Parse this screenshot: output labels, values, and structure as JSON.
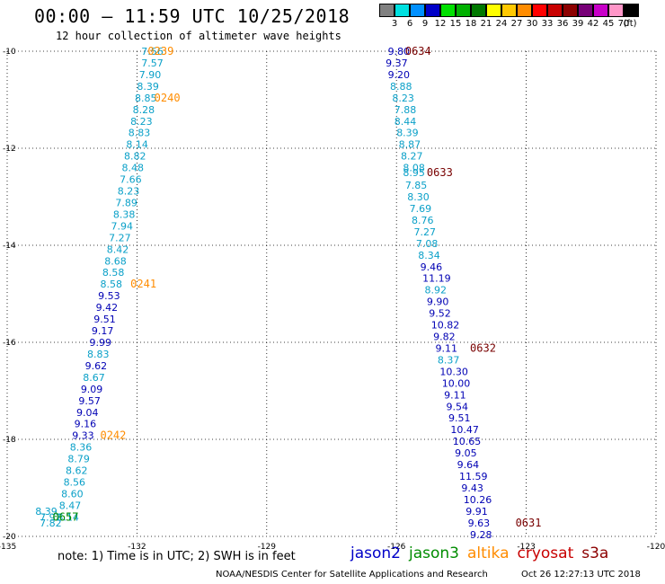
{
  "header": {
    "title": "00:00 – 11:59 UTC 10/25/2018",
    "subtitle": "12 hour collection of altimeter wave heights"
  },
  "color_scale": {
    "unit": "(ft)",
    "bins": [
      {
        "label": "3",
        "color": "#808080"
      },
      {
        "label": "6",
        "color": "#00e0e0"
      },
      {
        "label": "9",
        "color": "#0090ff"
      },
      {
        "label": "12",
        "color": "#0000c8"
      },
      {
        "label": "15",
        "color": "#00e000"
      },
      {
        "label": "18",
        "color": "#00b000"
      },
      {
        "label": "21",
        "color": "#007800"
      },
      {
        "label": "24",
        "color": "#ffff00"
      },
      {
        "label": "27",
        "color": "#ffc800"
      },
      {
        "label": "30",
        "color": "#ff8c00"
      },
      {
        "label": "33",
        "color": "#ff0000"
      },
      {
        "label": "36",
        "color": "#c80000"
      },
      {
        "label": "39",
        "color": "#8c0000"
      },
      {
        "label": "42",
        "color": "#780078"
      },
      {
        "label": "45",
        "color": "#c800c8"
      },
      {
        "label": "70",
        "color": "#ff96c8"
      },
      {
        "label": "",
        "color": "#000000"
      }
    ]
  },
  "note": "note: 1) Time is in UTC; 2) SWH is in feet",
  "satellites": [
    {
      "name": "jason2",
      "color": "#0000c8"
    },
    {
      "name": "jason3",
      "color": "#008c00"
    },
    {
      "name": "altika",
      "color": "#ff8c00"
    },
    {
      "name": "cryosat",
      "color": "#c80000"
    },
    {
      "name": "s3a",
      "color": "#8c0000"
    }
  ],
  "footer": {
    "left": "NOAA/NESDIS Center for Satellite Applications and Research",
    "right": "Oct 26 12:27:13 UTC 2018"
  },
  "chart_data": {
    "type": "scatter",
    "x_ticks": [
      "-135",
      "-132",
      "-129",
      "-126",
      "-123",
      "-120"
    ],
    "y_ticks": [
      "-10",
      "-12",
      "-14",
      "-16",
      "-18",
      "-20"
    ],
    "xlim": [
      -135,
      -120
    ],
    "ylim": [
      -20,
      -10
    ],
    "grid": "dotted",
    "colors": {
      "cyan": "#0aa0c8",
      "blue": "#0000b4",
      "orange": "#ff8c00",
      "darkred": "#780000",
      "green": "#008c00"
    },
    "series": [
      {
        "points": [
          {
            "lon": -131.9,
            "lat": -10.0,
            "swh": "7.56",
            "c": "cyan"
          },
          {
            "lon": -131.9,
            "lat": -10.24,
            "swh": "7.57",
            "c": "cyan"
          },
          {
            "lon": -131.95,
            "lat": -10.48,
            "swh": "7.90",
            "c": "cyan"
          },
          {
            "lon": -132.0,
            "lat": -10.72,
            "swh": "8.39",
            "c": "cyan"
          },
          {
            "lon": -132.05,
            "lat": -10.96,
            "swh": "8.85",
            "c": "cyan"
          },
          {
            "lon": -132.1,
            "lat": -11.2,
            "swh": "8.28",
            "c": "cyan"
          },
          {
            "lon": -132.15,
            "lat": -11.44,
            "swh": "8.23",
            "c": "cyan"
          },
          {
            "lon": -132.2,
            "lat": -11.68,
            "swh": "8.83",
            "c": "cyan"
          },
          {
            "lon": -132.25,
            "lat": -11.92,
            "swh": "8.14",
            "c": "cyan"
          },
          {
            "lon": -132.3,
            "lat": -12.16,
            "swh": "8.82",
            "c": "cyan"
          },
          {
            "lon": -132.35,
            "lat": -12.4,
            "swh": "8.48",
            "c": "cyan"
          },
          {
            "lon": -132.4,
            "lat": -12.64,
            "swh": "7.66",
            "c": "cyan"
          },
          {
            "lon": -132.45,
            "lat": -12.88,
            "swh": "8.23",
            "c": "cyan"
          },
          {
            "lon": -132.5,
            "lat": -13.12,
            "swh": "7.89",
            "c": "cyan"
          },
          {
            "lon": -132.55,
            "lat": -13.36,
            "swh": "8.38",
            "c": "cyan"
          },
          {
            "lon": -132.6,
            "lat": -13.6,
            "swh": "7.94",
            "c": "cyan"
          },
          {
            "lon": -132.65,
            "lat": -13.84,
            "swh": "7.27",
            "c": "cyan"
          },
          {
            "lon": -132.7,
            "lat": -14.08,
            "swh": "8.42",
            "c": "cyan"
          },
          {
            "lon": -132.75,
            "lat": -14.32,
            "swh": "8.68",
            "c": "cyan"
          },
          {
            "lon": -132.8,
            "lat": -14.56,
            "swh": "8.58",
            "c": "cyan"
          },
          {
            "lon": -132.85,
            "lat": -14.8,
            "swh": "8.58",
            "c": "cyan"
          },
          {
            "lon": -132.9,
            "lat": -15.04,
            "swh": "9.53",
            "c": "blue"
          },
          {
            "lon": -132.95,
            "lat": -15.28,
            "swh": "9.42",
            "c": "blue"
          },
          {
            "lon": -133.0,
            "lat": -15.52,
            "swh": "9.51",
            "c": "blue"
          },
          {
            "lon": -133.05,
            "lat": -15.76,
            "swh": "9.17",
            "c": "blue"
          },
          {
            "lon": -133.1,
            "lat": -16.0,
            "swh": "9.99",
            "c": "blue"
          },
          {
            "lon": -133.15,
            "lat": -16.24,
            "swh": "8.83",
            "c": "cyan"
          },
          {
            "lon": -133.2,
            "lat": -16.48,
            "swh": "9.62",
            "c": "blue"
          },
          {
            "lon": -133.25,
            "lat": -16.72,
            "swh": "8.67",
            "c": "cyan"
          },
          {
            "lon": -133.3,
            "lat": -16.96,
            "swh": "9.09",
            "c": "blue"
          },
          {
            "lon": -133.35,
            "lat": -17.2,
            "swh": "9.57",
            "c": "blue"
          },
          {
            "lon": -133.4,
            "lat": -17.44,
            "swh": "9.04",
            "c": "blue"
          },
          {
            "lon": -133.45,
            "lat": -17.68,
            "swh": "9.16",
            "c": "blue"
          },
          {
            "lon": -133.5,
            "lat": -17.92,
            "swh": "9.33",
            "c": "blue"
          },
          {
            "lon": -133.55,
            "lat": -18.16,
            "swh": "8.36",
            "c": "cyan"
          },
          {
            "lon": -133.6,
            "lat": -18.4,
            "swh": "8.79",
            "c": "cyan"
          },
          {
            "lon": -133.65,
            "lat": -18.64,
            "swh": "8.62",
            "c": "cyan"
          },
          {
            "lon": -133.7,
            "lat": -18.88,
            "swh": "8.56",
            "c": "cyan"
          },
          {
            "lon": -133.75,
            "lat": -19.12,
            "swh": "8.60",
            "c": "cyan"
          },
          {
            "lon": -133.8,
            "lat": -19.36,
            "swh": "8.47",
            "c": "cyan"
          },
          {
            "lon": -133.85,
            "lat": -19.6,
            "swh": "8.14",
            "c": "cyan"
          },
          {
            "lon": -134.35,
            "lat": -19.48,
            "swh": "8.39",
            "c": "cyan"
          },
          {
            "lon": -134.25,
            "lat": -19.6,
            "swh": "7.92",
            "c": "cyan"
          },
          {
            "lon": -134.25,
            "lat": -19.72,
            "swh": "7.82",
            "c": "cyan"
          },
          {
            "lon": -126.2,
            "lat": -10.0,
            "swh": "9.80",
            "c": "blue"
          },
          {
            "lon": -126.25,
            "lat": -10.24,
            "swh": "9.37",
            "c": "blue"
          },
          {
            "lon": -126.2,
            "lat": -10.48,
            "swh": "9.20",
            "c": "blue"
          },
          {
            "lon": -126.15,
            "lat": -10.72,
            "swh": "8.88",
            "c": "cyan"
          },
          {
            "lon": -126.1,
            "lat": -10.96,
            "swh": "8.23",
            "c": "cyan"
          },
          {
            "lon": -126.05,
            "lat": -11.2,
            "swh": "7.88",
            "c": "cyan"
          },
          {
            "lon": -126.05,
            "lat": -11.44,
            "swh": "8.44",
            "c": "cyan"
          },
          {
            "lon": -126.0,
            "lat": -11.68,
            "swh": "8.39",
            "c": "cyan"
          },
          {
            "lon": -125.95,
            "lat": -11.92,
            "swh": "8.87",
            "c": "cyan"
          },
          {
            "lon": -125.9,
            "lat": -12.16,
            "swh": "8.27",
            "c": "cyan"
          },
          {
            "lon": -125.85,
            "lat": -12.4,
            "swh": "8.08",
            "c": "cyan"
          },
          {
            "lon": -125.85,
            "lat": -12.5,
            "swh": "8.95",
            "c": "cyan"
          },
          {
            "lon": -125.8,
            "lat": -12.76,
            "swh": "7.85",
            "c": "cyan"
          },
          {
            "lon": -125.75,
            "lat": -13.0,
            "swh": "8.30",
            "c": "cyan"
          },
          {
            "lon": -125.7,
            "lat": -13.24,
            "swh": "7.69",
            "c": "cyan"
          },
          {
            "lon": -125.65,
            "lat": -13.48,
            "swh": "8.76",
            "c": "cyan"
          },
          {
            "lon": -125.6,
            "lat": -13.72,
            "swh": "7.27",
            "c": "cyan"
          },
          {
            "lon": -125.55,
            "lat": -13.96,
            "swh": "7.08",
            "c": "cyan"
          },
          {
            "lon": -125.5,
            "lat": -14.2,
            "swh": "8.34",
            "c": "cyan"
          },
          {
            "lon": -125.45,
            "lat": -14.44,
            "swh": "9.46",
            "c": "blue"
          },
          {
            "lon": -125.4,
            "lat": -14.68,
            "swh": "11.19",
            "c": "blue"
          },
          {
            "lon": -125.35,
            "lat": -14.92,
            "swh": "8.92",
            "c": "cyan"
          },
          {
            "lon": -125.3,
            "lat": -15.16,
            "swh": "9.90",
            "c": "blue"
          },
          {
            "lon": -125.25,
            "lat": -15.4,
            "swh": "9.52",
            "c": "blue"
          },
          {
            "lon": -125.2,
            "lat": -15.64,
            "swh": "10.82",
            "c": "blue"
          },
          {
            "lon": -125.15,
            "lat": -15.88,
            "swh": "9.82",
            "c": "blue"
          },
          {
            "lon": -125.1,
            "lat": -16.12,
            "swh": "9.11",
            "c": "blue"
          },
          {
            "lon": -125.05,
            "lat": -16.36,
            "swh": "8.37",
            "c": "cyan"
          },
          {
            "lon": -125.0,
            "lat": -16.6,
            "swh": "10.30",
            "c": "blue"
          },
          {
            "lon": -124.95,
            "lat": -16.84,
            "swh": "10.00",
            "c": "blue"
          },
          {
            "lon": -124.9,
            "lat": -17.08,
            "swh": "9.11",
            "c": "blue"
          },
          {
            "lon": -124.85,
            "lat": -17.32,
            "swh": "9.54",
            "c": "blue"
          },
          {
            "lon": -124.8,
            "lat": -17.56,
            "swh": "9.51",
            "c": "blue"
          },
          {
            "lon": -124.75,
            "lat": -17.8,
            "swh": "10.47",
            "c": "blue"
          },
          {
            "lon": -124.7,
            "lat": -18.04,
            "swh": "10.65",
            "c": "blue"
          },
          {
            "lon": -124.65,
            "lat": -18.28,
            "swh": "9.05",
            "c": "blue"
          },
          {
            "lon": -124.6,
            "lat": -18.52,
            "swh": "9.64",
            "c": "blue"
          },
          {
            "lon": -124.55,
            "lat": -18.76,
            "swh": "11.59",
            "c": "blue"
          },
          {
            "lon": -124.5,
            "lat": -19.0,
            "swh": "9.43",
            "c": "blue"
          },
          {
            "lon": -124.45,
            "lat": -19.24,
            "swh": "10.26",
            "c": "blue"
          },
          {
            "lon": -124.4,
            "lat": -19.48,
            "swh": "9.91",
            "c": "blue"
          },
          {
            "lon": -124.35,
            "lat": -19.72,
            "swh": "9.63",
            "c": "blue"
          },
          {
            "lon": -124.3,
            "lat": -19.96,
            "swh": "9.28",
            "c": "blue"
          }
        ]
      }
    ],
    "time_labels": [
      {
        "text": "0239",
        "lon": -131.75,
        "lat": -10.0,
        "c": "orange"
      },
      {
        "text": "0240",
        "lon": -131.6,
        "lat": -10.96,
        "c": "orange"
      },
      {
        "text": "0241",
        "lon": -132.15,
        "lat": -14.8,
        "c": "orange"
      },
      {
        "text": "0242",
        "lon": -132.85,
        "lat": -17.92,
        "c": "orange"
      },
      {
        "text": "0657",
        "lon": -133.95,
        "lat": -19.6,
        "c": "green"
      },
      {
        "text": "0634",
        "lon": -125.8,
        "lat": -10.0,
        "c": "darkred"
      },
      {
        "text": "0633",
        "lon": -125.3,
        "lat": -12.5,
        "c": "darkred"
      },
      {
        "text": "0632",
        "lon": -124.3,
        "lat": -16.12,
        "c": "darkred"
      },
      {
        "text": "0631",
        "lon": -123.25,
        "lat": -19.72,
        "c": "darkred"
      }
    ]
  }
}
